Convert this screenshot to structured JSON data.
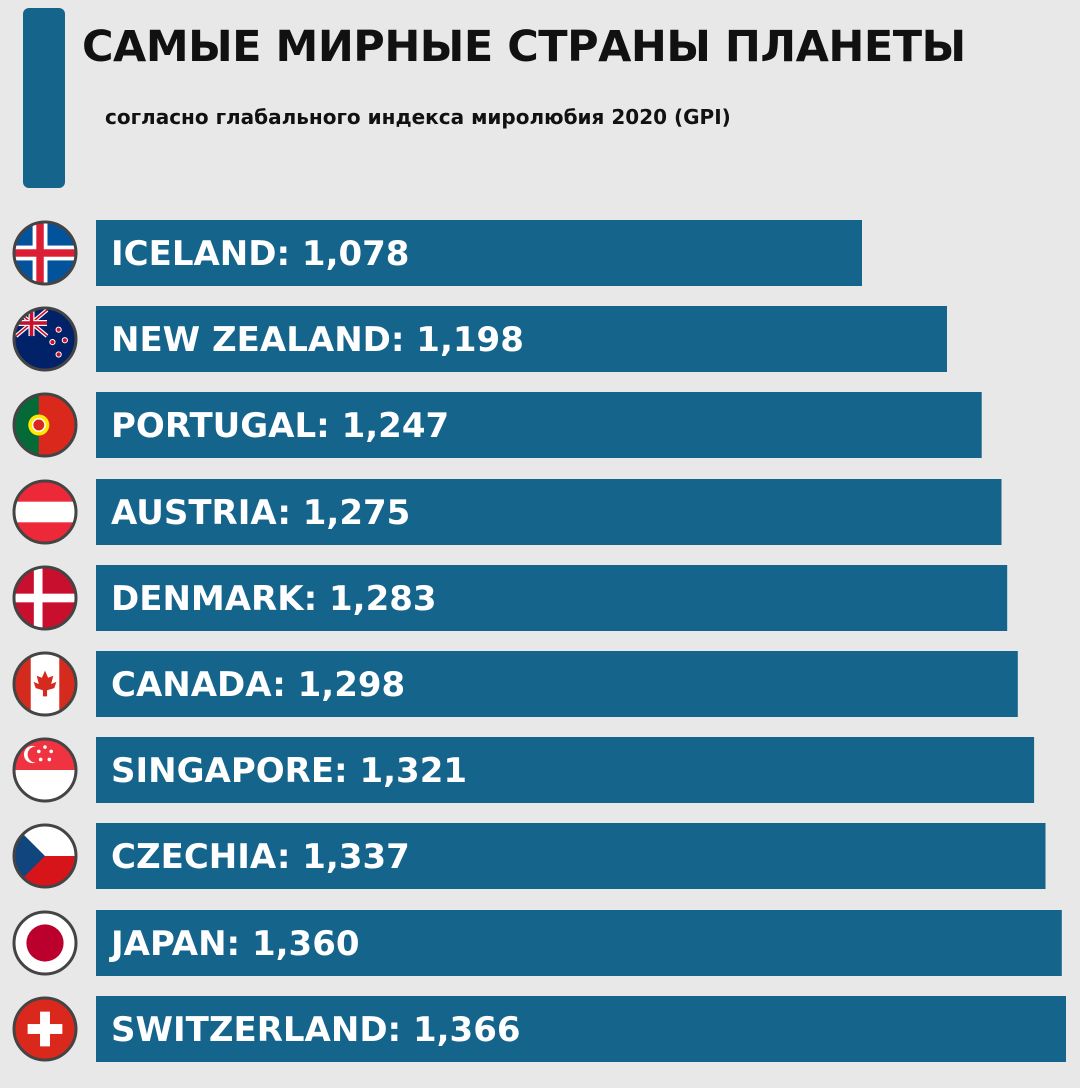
{
  "title": "САМЫЕ МИРНЫЕ СТРАНЫ ПЛАНЕТЫ",
  "subtitle": "согласно глабального индекса миролюбия 2020 (GPI)",
  "colors": {
    "bar": "#15648c",
    "accent": "#15648c",
    "background": "#e8e8e8"
  },
  "chart_data": {
    "type": "bar",
    "orientation": "horizontal",
    "title": "САМЫЕ МИРНЫЕ СТРАНЫ ПЛАНЕТЫ",
    "subtitle": "согласно глабального индекса миролюбия 2020 (GPI)",
    "categories": [
      "ICELAND",
      "NEW ZEALAND",
      "PORTUGAL",
      "AUSTRIA",
      "DENMARK",
      "CANADA",
      "SINGAPORE",
      "CZECHIA",
      "JAPAN",
      "SWITZERLAND"
    ],
    "values": [
      1.078,
      1.198,
      1.247,
      1.275,
      1.283,
      1.298,
      1.321,
      1.337,
      1.36,
      1.366
    ],
    "labels": [
      "ICELAND: 1,078",
      "NEW ZEALAND: 1,198",
      "PORTUGAL: 1,247",
      "AUSTRIA: 1,275",
      "DENMARK: 1,283",
      "CANADA: 1,298",
      "SINGAPORE: 1,321",
      "CZECHIA: 1,337",
      "JAPAN: 1,360",
      "SWITZERLAND: 1,366"
    ],
    "flags": [
      "iceland",
      "new-zealand",
      "portugal",
      "austria",
      "denmark",
      "canada",
      "singapore",
      "czechia",
      "japan",
      "switzerland"
    ],
    "xlim": [
      0,
      1.366
    ],
    "xlabel": "",
    "ylabel": ""
  }
}
